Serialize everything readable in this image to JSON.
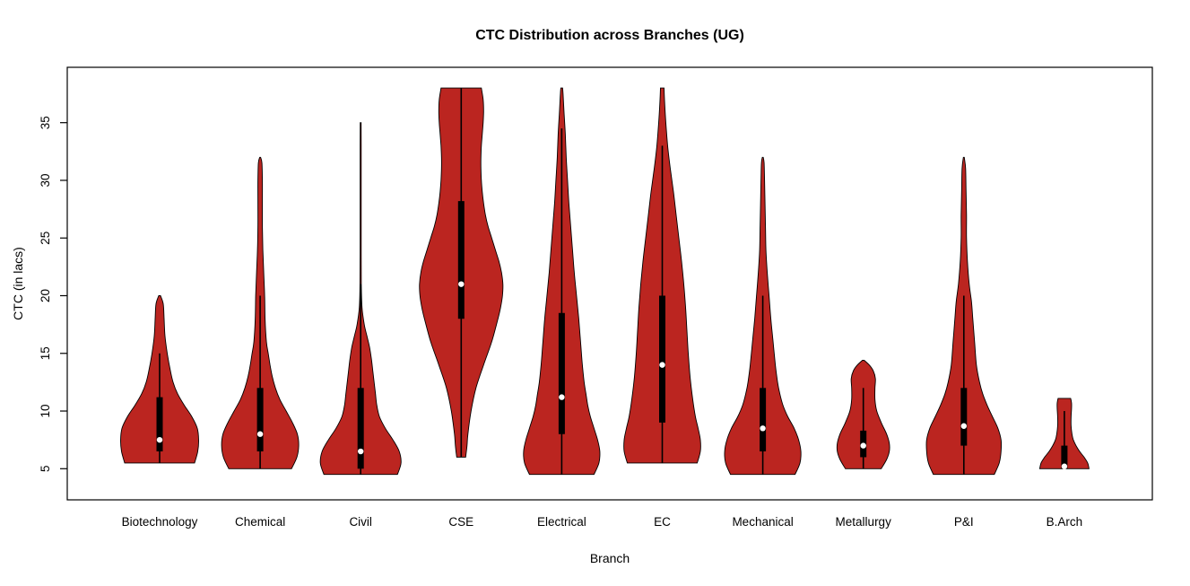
{
  "page": {
    "background": "#FFFFFF"
  },
  "chart_data": {
    "type": "violin",
    "title": "CTC Distribution across Branches (UG)",
    "xlabel": "Branch",
    "ylabel": "CTC (in lacs)",
    "y_ticks": [
      5,
      10,
      15,
      20,
      25,
      30,
      35
    ],
    "ylim": [
      2.3,
      39.8
    ],
    "grid": false,
    "legend": "none",
    "colors": {
      "violin_fill": "#BB2520",
      "violin_stroke": "#000000",
      "box": "#000000",
      "whisker": "#000000",
      "median_dot": "#FFFFFF",
      "frame": "#000000"
    },
    "categories": [
      "Biotechnology",
      "Chemical",
      "Civil",
      "CSE",
      "Electrical",
      "EC",
      "Mechanical",
      "Metallurgy",
      "P&I",
      "B.Arch"
    ],
    "series": [
      {
        "branch": "Biotechnology",
        "stats": {
          "min": 5.5,
          "whisker_low": 5.5,
          "q1": 6.5,
          "median": 7.5,
          "q3": 11.2,
          "whisker_high": 15,
          "max": 20
        },
        "shape": [
          [
            5.5,
            0.78
          ],
          [
            6.5,
            0.85
          ],
          [
            7.5,
            0.87
          ],
          [
            8.5,
            0.84
          ],
          [
            9.5,
            0.72
          ],
          [
            10.5,
            0.55
          ],
          [
            11.5,
            0.4
          ],
          [
            12.5,
            0.3
          ],
          [
            13.5,
            0.24
          ],
          [
            15,
            0.17
          ],
          [
            16.5,
            0.12
          ],
          [
            18,
            0.1
          ],
          [
            19.3,
            0.08
          ],
          [
            20,
            0.02
          ]
        ]
      },
      {
        "branch": "Chemical",
        "stats": {
          "min": 5,
          "whisker_low": 5,
          "q1": 6.5,
          "median": 8,
          "q3": 12,
          "whisker_high": 20,
          "max": 32
        },
        "shape": [
          [
            5,
            0.7
          ],
          [
            6,
            0.82
          ],
          [
            7,
            0.86
          ],
          [
            8,
            0.83
          ],
          [
            9,
            0.72
          ],
          [
            10,
            0.58
          ],
          [
            11,
            0.44
          ],
          [
            12,
            0.34
          ],
          [
            13,
            0.27
          ],
          [
            14,
            0.22
          ],
          [
            15,
            0.18
          ],
          [
            16,
            0.14
          ],
          [
            18,
            0.11
          ],
          [
            20,
            0.1
          ],
          [
            22,
            0.08
          ],
          [
            24,
            0.06
          ],
          [
            26,
            0.05
          ],
          [
            28,
            0.05
          ],
          [
            30,
            0.05
          ],
          [
            31.5,
            0.04
          ],
          [
            32,
            0.01
          ]
        ]
      },
      {
        "branch": "Civil",
        "stats": {
          "min": 4.5,
          "whisker_low": 4.5,
          "q1": 5,
          "median": 6.5,
          "q3": 12,
          "whisker_high": 21,
          "max": 35
        },
        "shape": [
          [
            4.5,
            0.82
          ],
          [
            5.5,
            0.9
          ],
          [
            6.5,
            0.86
          ],
          [
            7.5,
            0.72
          ],
          [
            8.5,
            0.55
          ],
          [
            9.5,
            0.42
          ],
          [
            10.5,
            0.36
          ],
          [
            11.5,
            0.33
          ],
          [
            12.5,
            0.3
          ],
          [
            13.5,
            0.27
          ],
          [
            14.5,
            0.24
          ],
          [
            15.5,
            0.2
          ],
          [
            16.5,
            0.14
          ],
          [
            17.5,
            0.08
          ],
          [
            19,
            0.03
          ],
          [
            21,
            0.015
          ],
          [
            25,
            0.012
          ],
          [
            29,
            0.012
          ],
          [
            33,
            0.012
          ],
          [
            35,
            0.01
          ]
        ]
      },
      {
        "branch": "CSE",
        "stats": {
          "min": 6,
          "whisker_low": 6,
          "q1": 18,
          "median": 21,
          "q3": 28.2,
          "whisker_high": 38,
          "max": 38
        },
        "shape": [
          [
            6,
            0.1
          ],
          [
            7,
            0.13
          ],
          [
            8,
            0.15
          ],
          [
            10,
            0.22
          ],
          [
            12,
            0.33
          ],
          [
            14,
            0.5
          ],
          [
            16,
            0.68
          ],
          [
            18,
            0.82
          ],
          [
            19,
            0.88
          ],
          [
            20,
            0.92
          ],
          [
            21,
            0.93
          ],
          [
            22,
            0.9
          ],
          [
            23,
            0.84
          ],
          [
            24,
            0.76
          ],
          [
            25,
            0.68
          ],
          [
            26,
            0.6
          ],
          [
            27,
            0.54
          ],
          [
            28,
            0.5
          ],
          [
            29,
            0.47
          ],
          [
            30,
            0.45
          ],
          [
            31,
            0.44
          ],
          [
            32,
            0.44
          ],
          [
            33,
            0.45
          ],
          [
            34,
            0.47
          ],
          [
            35,
            0.49
          ],
          [
            36,
            0.5
          ],
          [
            37,
            0.49
          ],
          [
            38,
            0.45
          ]
        ]
      },
      {
        "branch": "Electrical",
        "stats": {
          "min": 4.5,
          "whisker_low": 4.5,
          "q1": 8,
          "median": 11.2,
          "q3": 18.5,
          "whisker_high": 34.5,
          "max": 38
        },
        "shape": [
          [
            4.5,
            0.72
          ],
          [
            5.5,
            0.83
          ],
          [
            6.5,
            0.85
          ],
          [
            7.5,
            0.8
          ],
          [
            8.5,
            0.72
          ],
          [
            9.5,
            0.64
          ],
          [
            10.5,
            0.58
          ],
          [
            11.5,
            0.54
          ],
          [
            12.5,
            0.5
          ],
          [
            14,
            0.46
          ],
          [
            16,
            0.42
          ],
          [
            18,
            0.38
          ],
          [
            20,
            0.33
          ],
          [
            22,
            0.28
          ],
          [
            24,
            0.24
          ],
          [
            26,
            0.2
          ],
          [
            28,
            0.16
          ],
          [
            30,
            0.13
          ],
          [
            32,
            0.1
          ],
          [
            34,
            0.08
          ],
          [
            36,
            0.05
          ],
          [
            37.5,
            0.03
          ],
          [
            38,
            0.02
          ]
        ]
      },
      {
        "branch": "EC",
        "stats": {
          "min": 5.5,
          "whisker_low": 5.5,
          "q1": 9,
          "median": 14,
          "q3": 20,
          "whisker_high": 33,
          "max": 38
        },
        "shape": [
          [
            5.5,
            0.78
          ],
          [
            6.5,
            0.85
          ],
          [
            7.5,
            0.85
          ],
          [
            8.5,
            0.8
          ],
          [
            9.5,
            0.74
          ],
          [
            11,
            0.68
          ],
          [
            13,
            0.62
          ],
          [
            15,
            0.58
          ],
          [
            17,
            0.55
          ],
          [
            19,
            0.52
          ],
          [
            21,
            0.48
          ],
          [
            23,
            0.43
          ],
          [
            25,
            0.37
          ],
          [
            27,
            0.31
          ],
          [
            29,
            0.25
          ],
          [
            31,
            0.18
          ],
          [
            33,
            0.12
          ],
          [
            35,
            0.08
          ],
          [
            37,
            0.05
          ],
          [
            38,
            0.04
          ]
        ]
      },
      {
        "branch": "Mechanical",
        "stats": {
          "min": 4.5,
          "whisker_low": 4.5,
          "q1": 6.5,
          "median": 8.5,
          "q3": 12,
          "whisker_high": 20,
          "max": 32
        },
        "shape": [
          [
            4.5,
            0.72
          ],
          [
            5.5,
            0.83
          ],
          [
            6.5,
            0.85
          ],
          [
            7.5,
            0.8
          ],
          [
            8.5,
            0.7
          ],
          [
            9.5,
            0.56
          ],
          [
            10.5,
            0.45
          ],
          [
            11.5,
            0.38
          ],
          [
            12.5,
            0.33
          ],
          [
            14,
            0.28
          ],
          [
            16,
            0.23
          ],
          [
            18,
            0.18
          ],
          [
            20,
            0.14
          ],
          [
            22,
            0.1
          ],
          [
            24,
            0.07
          ],
          [
            26,
            0.06
          ],
          [
            28,
            0.05
          ],
          [
            30,
            0.04
          ],
          [
            31.5,
            0.03
          ],
          [
            32,
            0.01
          ]
        ]
      },
      {
        "branch": "Metallurgy",
        "stats": {
          "min": 5,
          "whisker_low": 5,
          "q1": 6,
          "median": 7,
          "q3": 8.3,
          "whisker_high": 12,
          "max": 14.4
        },
        "shape": [
          [
            5,
            0.4
          ],
          [
            5.8,
            0.52
          ],
          [
            6.5,
            0.58
          ],
          [
            7.2,
            0.58
          ],
          [
            8,
            0.52
          ],
          [
            9,
            0.4
          ],
          [
            10,
            0.3
          ],
          [
            11,
            0.26
          ],
          [
            12,
            0.26
          ],
          [
            12.8,
            0.27
          ],
          [
            13.5,
            0.22
          ],
          [
            14,
            0.13
          ],
          [
            14.4,
            0.02
          ]
        ]
      },
      {
        "branch": "P&I",
        "stats": {
          "min": 4.5,
          "whisker_low": 4.5,
          "q1": 7,
          "median": 8.7,
          "q3": 12,
          "whisker_high": 20,
          "max": 32
        },
        "shape": [
          [
            4.5,
            0.68
          ],
          [
            5.5,
            0.79
          ],
          [
            6.5,
            0.83
          ],
          [
            7.5,
            0.83
          ],
          [
            8.5,
            0.76
          ],
          [
            9.5,
            0.64
          ],
          [
            10.5,
            0.52
          ],
          [
            11.5,
            0.42
          ],
          [
            12.5,
            0.35
          ],
          [
            14,
            0.28
          ],
          [
            16,
            0.24
          ],
          [
            18,
            0.2
          ],
          [
            19.5,
            0.17
          ],
          [
            21,
            0.12
          ],
          [
            23,
            0.08
          ],
          [
            25,
            0.06
          ],
          [
            27,
            0.06
          ],
          [
            29,
            0.05
          ],
          [
            31,
            0.04
          ],
          [
            32,
            0.01
          ]
        ]
      },
      {
        "branch": "B.Arch",
        "stats": {
          "min": 5,
          "whisker_low": 5,
          "q1": 5,
          "median": 5.2,
          "q3": 7,
          "whisker_high": 10,
          "max": 11.1
        },
        "shape": [
          [
            5,
            0.55
          ],
          [
            5.5,
            0.52
          ],
          [
            6,
            0.44
          ],
          [
            6.5,
            0.34
          ],
          [
            7,
            0.26
          ],
          [
            7.5,
            0.2
          ],
          [
            8,
            0.17
          ],
          [
            8.7,
            0.15
          ],
          [
            9.5,
            0.15
          ],
          [
            10.2,
            0.16
          ],
          [
            10.7,
            0.16
          ],
          [
            11.1,
            0.14
          ]
        ]
      }
    ]
  }
}
